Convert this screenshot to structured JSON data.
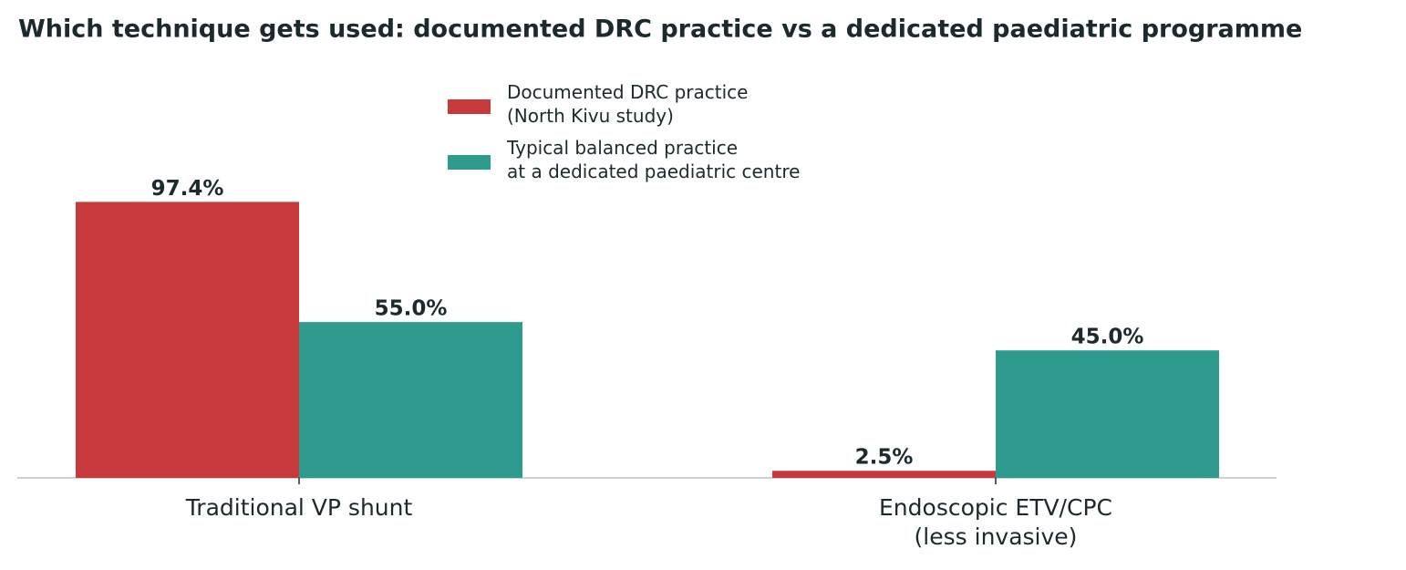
{
  "chart_data": {
    "type": "bar",
    "title": "Which technique gets used: documented DRC practice vs a dedicated paediatric programme",
    "categories": [
      "Traditional VP shunt",
      "Endoscopic ETV/CPC\n(less invasive)"
    ],
    "series": [
      {
        "name": "Documented DRC practice\n(North Kivu study)",
        "color": "#c8393b",
        "values": [
          97.4,
          2.5
        ],
        "value_labels": [
          "97.4%",
          "2.5%"
        ]
      },
      {
        "name": "Typical balanced practice\nat a dedicated paediatric centre",
        "color": "#2e9b8e",
        "values": [
          55.0,
          45.0
        ],
        "value_labels": [
          "55.0%",
          "45.0%"
        ]
      }
    ],
    "ylim": [
      0,
      150
    ],
    "legend": "upper center"
  }
}
